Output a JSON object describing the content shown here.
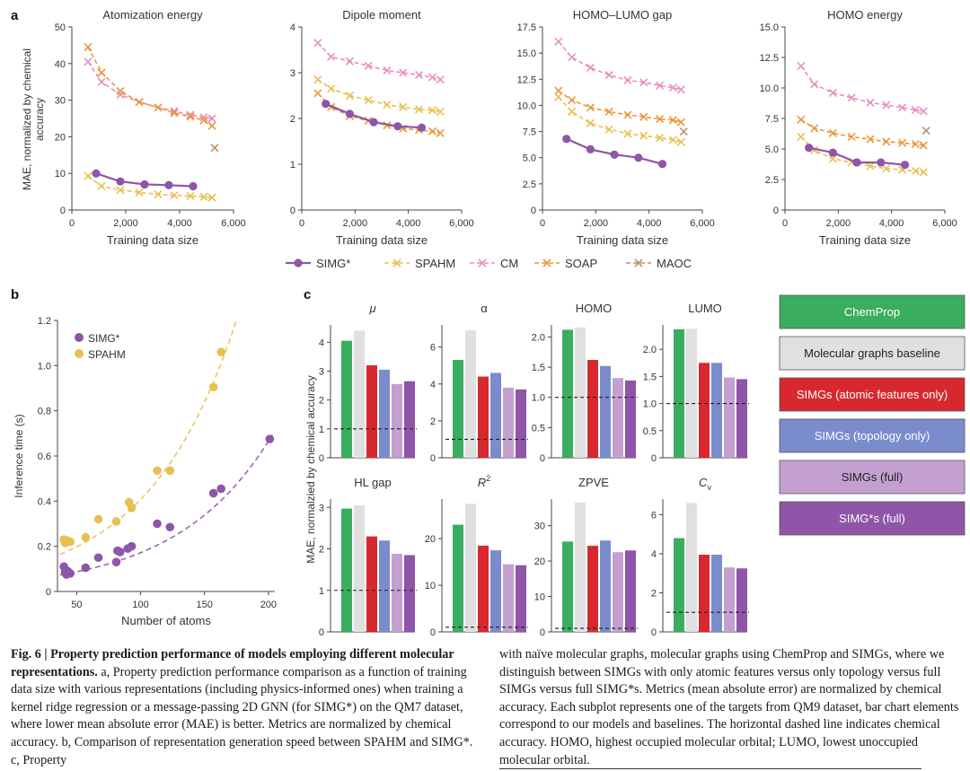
{
  "figure": {
    "panel_labels": {
      "a": "a",
      "b": "b",
      "c": "c"
    },
    "legend_a": [
      {
        "name": "SIMG*",
        "color": "#8e55a8",
        "marker": "circle"
      },
      {
        "name": "SPAHM",
        "color": "#e8c052",
        "marker": "x"
      },
      {
        "name": "CM",
        "color": "#e88fbf",
        "marker": "x"
      },
      {
        "name": "SOAP",
        "color": "#e9963f",
        "marker": "x"
      },
      {
        "name": "MAOC",
        "color": "#b8936a",
        "marker": "x"
      }
    ],
    "legend_c": [
      {
        "name": "ChemProp",
        "color": "#3aad5f",
        "text_color": "#ffffff"
      },
      {
        "name": "Molecular graphs baseline",
        "color": "#e0e0e0",
        "text_color": "#222222"
      },
      {
        "name": "SIMGs (atomic features only)",
        "color": "#d8282f",
        "text_color": "#ffffff"
      },
      {
        "name": "SIMGs (topology only)",
        "color": "#7a8ccc",
        "text_color": "#ffffff"
      },
      {
        "name": "SIMGs (full)",
        "color": "#c3a0d0",
        "text_color": "#222222"
      },
      {
        "name": "SIMG*s (full)",
        "color": "#8e55a8",
        "text_color": "#ffffff"
      }
    ]
  },
  "chart_data": [
    {
      "panel": "a",
      "type": "line",
      "title": "Atomization energy",
      "xlabel": "Training data size",
      "ylabel": "MAE, normalized by chemical accuracy",
      "xlim": [
        0,
        6000
      ],
      "ylim": [
        0,
        50
      ],
      "xticks": [
        0,
        2000,
        4000,
        6000
      ],
      "xtick_labels": [
        "0",
        "2,000",
        "4,000",
        "6,000"
      ],
      "yticks": [
        0,
        10,
        20,
        30,
        40,
        50
      ],
      "ytick_labels": [
        "0",
        "10",
        "20",
        "30",
        "40",
        "50"
      ],
      "series": [
        {
          "name": "CM",
          "x": [
            600,
            1100,
            1800,
            2500,
            3200,
            3800,
            4400,
            4900,
            5200
          ],
          "y": [
            40.5,
            35,
            31.5,
            29.5,
            28,
            27,
            26,
            25.3,
            25
          ]
        },
        {
          "name": "SOAP",
          "x": [
            600,
            1100,
            1800,
            2500,
            3200,
            3800,
            4400,
            4900,
            5200
          ],
          "y": [
            44.5,
            37.5,
            32.5,
            29.5,
            28,
            26.5,
            25.5,
            24.5,
            23
          ]
        },
        {
          "name": "SPAHM",
          "x": [
            600,
            1100,
            1800,
            2500,
            3200,
            3800,
            4400,
            4900,
            5200
          ],
          "y": [
            9.3,
            6.5,
            5.5,
            4.8,
            4.3,
            4,
            3.8,
            3.6,
            3.4
          ]
        },
        {
          "name": "SIMG*",
          "x": [
            900,
            1800,
            2700,
            3600,
            4500
          ],
          "y": [
            10,
            7.8,
            7,
            6.8,
            6.5
          ]
        },
        {
          "name": "MAOC",
          "x": [
            5300
          ],
          "y": [
            17
          ]
        }
      ]
    },
    {
      "panel": "a",
      "type": "line",
      "title": "Dipole moment",
      "xlabel": "Training data size",
      "ylabel": "",
      "xlim": [
        0,
        6000
      ],
      "ylim": [
        0,
        4
      ],
      "xticks": [
        0,
        2000,
        4000,
        6000
      ],
      "xtick_labels": [
        "0",
        "2,000",
        "4,000",
        "6,000"
      ],
      "yticks": [
        0,
        1,
        2,
        3,
        4
      ],
      "ytick_labels": [
        "0",
        "1",
        "2",
        "3",
        "4"
      ],
      "series": [
        {
          "name": "CM",
          "x": [
            600,
            1100,
            1800,
            2500,
            3200,
            3800,
            4400,
            4900,
            5200
          ],
          "y": [
            3.65,
            3.35,
            3.25,
            3.15,
            3.05,
            3,
            2.95,
            2.9,
            2.85
          ]
        },
        {
          "name": "SPAHM",
          "x": [
            600,
            1100,
            1800,
            2500,
            3200,
            3800,
            4400,
            4900,
            5200
          ],
          "y": [
            2.85,
            2.65,
            2.5,
            2.4,
            2.3,
            2.25,
            2.2,
            2.18,
            2.15
          ]
        },
        {
          "name": "SOAP",
          "x": [
            600,
            1100,
            1800,
            2500,
            3200,
            3800,
            4400,
            4900,
            5200
          ],
          "y": [
            2.55,
            2.25,
            2.05,
            1.95,
            1.85,
            1.78,
            1.75,
            1.72,
            1.68
          ]
        },
        {
          "name": "SIMG*",
          "x": [
            900,
            1800,
            2700,
            3600,
            4500
          ],
          "y": [
            2.32,
            2.1,
            1.92,
            1.83,
            1.8
          ]
        }
      ]
    },
    {
      "panel": "a",
      "type": "line",
      "title": "HOMO–LUMO gap",
      "xlabel": "Training data size",
      "ylabel": "",
      "xlim": [
        0,
        6000
      ],
      "ylim": [
        0,
        17.5
      ],
      "xticks": [
        0,
        2000,
        4000,
        6000
      ],
      "xtick_labels": [
        "0",
        "2,000",
        "4,000",
        "6,000"
      ],
      "yticks": [
        0,
        2.5,
        5,
        7.5,
        10,
        12.5,
        15,
        17.5
      ],
      "ytick_labels": [
        "0",
        "2.5",
        "5.0",
        "7.5",
        "10.0",
        "12.5",
        "15.0",
        "17.5"
      ],
      "series": [
        {
          "name": "CM",
          "x": [
            600,
            1100,
            1800,
            2500,
            3200,
            3800,
            4400,
            4900,
            5200
          ],
          "y": [
            16.1,
            14.6,
            13.6,
            12.9,
            12.4,
            12.2,
            11.9,
            11.7,
            11.5
          ]
        },
        {
          "name": "SOAP",
          "x": [
            600,
            1100,
            1800,
            2500,
            3200,
            3800,
            4400,
            4900,
            5200
          ],
          "y": [
            11.4,
            10.5,
            9.8,
            9.4,
            9.1,
            8.9,
            8.7,
            8.6,
            8.4
          ]
        },
        {
          "name": "SPAHM",
          "x": [
            600,
            1100,
            1800,
            2500,
            3200,
            3800,
            4400,
            4900,
            5200
          ],
          "y": [
            10.8,
            9.4,
            8.3,
            7.7,
            7.3,
            7.1,
            6.9,
            6.7,
            6.5
          ]
        },
        {
          "name": "SIMG*",
          "x": [
            900,
            1800,
            2700,
            3600,
            4500
          ],
          "y": [
            6.8,
            5.8,
            5.3,
            5,
            4.4
          ]
        },
        {
          "name": "MAOC",
          "x": [
            5300
          ],
          "y": [
            7.5
          ]
        }
      ]
    },
    {
      "panel": "a",
      "type": "line",
      "title": "HOMO energy",
      "xlabel": "Training data size",
      "ylabel": "",
      "xlim": [
        0,
        6000
      ],
      "ylim": [
        0,
        15
      ],
      "xticks": [
        0,
        2000,
        4000,
        6000
      ],
      "xtick_labels": [
        "0",
        "2,000",
        "4,000",
        "6,000"
      ],
      "yticks": [
        0,
        2.5,
        5,
        7.5,
        10,
        12.5,
        15
      ],
      "ytick_labels": [
        "0",
        "2.5",
        "5.0",
        "7.5",
        "10.0",
        "12.5",
        "15.0"
      ],
      "series": [
        {
          "name": "CM",
          "x": [
            600,
            1100,
            1800,
            2500,
            3200,
            3800,
            4400,
            4900,
            5200
          ],
          "y": [
            11.8,
            10.3,
            9.6,
            9.2,
            8.8,
            8.6,
            8.4,
            8.2,
            8.1
          ]
        },
        {
          "name": "SOAP",
          "x": [
            600,
            1100,
            1800,
            2500,
            3200,
            3800,
            4400,
            4900,
            5200
          ],
          "y": [
            7.4,
            6.7,
            6.3,
            6,
            5.8,
            5.6,
            5.5,
            5.4,
            5.3
          ]
        },
        {
          "name": "SPAHM",
          "x": [
            600,
            1100,
            1800,
            2500,
            3200,
            3800,
            4400,
            4900,
            5200
          ],
          "y": [
            6,
            4.9,
            4.2,
            3.9,
            3.6,
            3.4,
            3.3,
            3.2,
            3.1
          ]
        },
        {
          "name": "SIMG*",
          "x": [
            900,
            1800,
            2700,
            3600,
            4500
          ],
          "y": [
            5.1,
            4.7,
            3.9,
            3.9,
            3.7
          ]
        },
        {
          "name": "MAOC",
          "x": [
            5300
          ],
          "y": [
            6.5
          ]
        }
      ]
    },
    {
      "panel": "b",
      "type": "scatter",
      "title": "",
      "xlabel": "Number of atoms",
      "ylabel": "Inference time (s)",
      "xlim": [
        35,
        205
      ],
      "ylim": [
        0,
        1.2
      ],
      "xticks": [
        50,
        100,
        150,
        200
      ],
      "xtick_labels": [
        "50",
        "100",
        "150",
        "200"
      ],
      "yticks": [
        0,
        0.2,
        0.4,
        0.6,
        0.8,
        1.0,
        1.2
      ],
      "ytick_labels": [
        "0",
        "0.2",
        "0.4",
        "0.6",
        "0.8",
        "1.0",
        "1.2"
      ],
      "legend": [
        "SIMG*",
        "SPAHM"
      ],
      "series": [
        {
          "name": "SIMG*",
          "color": "#8e55a8",
          "x": [
            40,
            41,
            42,
            43,
            45,
            57,
            67,
            81,
            82,
            84,
            90,
            93,
            113,
            123,
            157,
            163,
            201
          ],
          "y": [
            0.11,
            0.085,
            0.075,
            0.09,
            0.08,
            0.105,
            0.15,
            0.13,
            0.18,
            0.175,
            0.19,
            0.2,
            0.3,
            0.285,
            0.435,
            0.455,
            0.675
          ],
          "fit": {
            "a": 0.0443,
            "b": 0.01355
          }
        },
        {
          "name": "SPAHM",
          "color": "#e8c052",
          "x": [
            40,
            41,
            43,
            45,
            57,
            67,
            81,
            91,
            93,
            113,
            123,
            157,
            163
          ],
          "y": [
            0.23,
            0.215,
            0.225,
            0.22,
            0.24,
            0.32,
            0.31,
            0.395,
            0.37,
            0.535,
            0.535,
            0.905,
            1.06
          ],
          "fit": {
            "a": 0.0962,
            "b": 0.01443
          }
        }
      ]
    },
    {
      "panel": "c",
      "type": "bar",
      "title": "μ",
      "italic": true,
      "categories": [
        "ChemProp",
        "Molecular graphs baseline",
        "SIMGs (atomic features only)",
        "SIMGs (topology only)",
        "SIMGs (full)",
        "SIMG*s (full)"
      ],
      "values": [
        4.05,
        4.4,
        3.2,
        3.05,
        2.55,
        2.65
      ],
      "ylim": [
        0,
        4.6
      ],
      "yticks": [
        0,
        1,
        2,
        3,
        4
      ],
      "ytick_labels": [
        "0",
        "1",
        "2",
        "3",
        "4"
      ],
      "reference": 1
    },
    {
      "panel": "c",
      "type": "bar",
      "title": "α",
      "italic": false,
      "categories": [
        "ChemProp",
        "Molecular graphs baseline",
        "SIMGs (atomic features only)",
        "SIMGs (topology only)",
        "SIMGs (full)",
        "SIMG*s (full)"
      ],
      "values": [
        5.3,
        6.9,
        4.4,
        4.6,
        3.8,
        3.7
      ],
      "ylim": [
        0,
        7.2
      ],
      "yticks": [
        0,
        2,
        4,
        6
      ],
      "ytick_labels": [
        "0",
        "2",
        "4",
        "6"
      ],
      "reference": 1
    },
    {
      "panel": "c",
      "type": "bar",
      "title": "HOMO",
      "italic": false,
      "categories": [
        "ChemProp",
        "Molecular graphs baseline",
        "SIMGs (atomic features only)",
        "SIMGs (topology only)",
        "SIMGs (full)",
        "SIMG*s (full)"
      ],
      "values": [
        2.12,
        2.16,
        1.62,
        1.52,
        1.32,
        1.28
      ],
      "ylim": [
        0,
        2.2
      ],
      "yticks": [
        0,
        0.5,
        1.0,
        1.5,
        2.0
      ],
      "ytick_labels": [
        "0",
        "0.5",
        "1.0",
        "1.5",
        "2.0"
      ],
      "reference": 1
    },
    {
      "panel": "c",
      "type": "bar",
      "title": "LUMO",
      "italic": false,
      "categories": [
        "ChemProp",
        "Molecular graphs baseline",
        "SIMGs (atomic features only)",
        "SIMGs (topology only)",
        "SIMGs (full)",
        "SIMG*s (full)"
      ],
      "values": [
        2.37,
        2.38,
        1.75,
        1.75,
        1.48,
        1.45
      ],
      "ylim": [
        0,
        2.45
      ],
      "yticks": [
        0,
        0.5,
        1.0,
        1.5,
        2.0
      ],
      "ytick_labels": [
        "0",
        "0.5",
        "1.0",
        "1.5",
        "2.0"
      ],
      "reference": 1
    },
    {
      "panel": "c",
      "type": "bar",
      "title": "HL gap",
      "italic": false,
      "categories": [
        "ChemProp",
        "Molecular graphs baseline",
        "SIMGs (atomic features only)",
        "SIMGs (topology only)",
        "SIMGs (full)",
        "SIMG*s (full)"
      ],
      "values": [
        2.97,
        3.05,
        2.3,
        2.2,
        1.88,
        1.85
      ],
      "ylim": [
        0,
        3.2
      ],
      "yticks": [
        0,
        1,
        2,
        3
      ],
      "ytick_labels": [
        "0",
        "1",
        "2",
        "3"
      ],
      "reference": 1
    },
    {
      "panel": "c",
      "type": "bar",
      "title": "R",
      "superscript": "2",
      "italic": true,
      "categories": [
        "ChemProp",
        "Molecular graphs baseline",
        "SIMGs (atomic features only)",
        "SIMGs (topology only)",
        "SIMGs (full)",
        "SIMG*s (full)"
      ],
      "values": [
        23,
        27.5,
        18.5,
        17.5,
        14.5,
        14.3
      ],
      "ylim": [
        0,
        28.5
      ],
      "yticks": [
        0,
        10,
        20
      ],
      "ytick_labels": [
        "0",
        "10",
        "20"
      ],
      "reference": 1
    },
    {
      "panel": "c",
      "type": "bar",
      "title": "ZPVE",
      "italic": false,
      "categories": [
        "ChemProp",
        "Molecular graphs baseline",
        "SIMGs (atomic features only)",
        "SIMGs (topology only)",
        "SIMGs (full)",
        "SIMG*s (full)"
      ],
      "values": [
        25.5,
        36.5,
        24.3,
        25.8,
        22.5,
        23
      ],
      "ylim": [
        0,
        37.5
      ],
      "yticks": [
        0,
        10,
        20,
        30
      ],
      "ytick_labels": [
        "0",
        "10",
        "20",
        "30"
      ],
      "reference": 1
    },
    {
      "panel": "c",
      "type": "bar",
      "title": "C",
      "subscript": "v",
      "italic": true,
      "categories": [
        "ChemProp",
        "Molecular graphs baseline",
        "SIMGs (atomic features only)",
        "SIMGs (topology only)",
        "SIMGs (full)",
        "SIMG*s (full)"
      ],
      "values": [
        4.8,
        6.6,
        3.95,
        3.95,
        3.3,
        3.25
      ],
      "ylim": [
        0,
        6.8
      ],
      "yticks": [
        0,
        2,
        4,
        6
      ],
      "ytick_labels": [
        "0",
        "2",
        "4",
        "6"
      ],
      "reference": 1
    },
    {
      "panel": "c",
      "type": "bar_axis_label",
      "ylabel": "MAE, normalzied by chemical accuracy"
    }
  ],
  "caption": {
    "fig_label": "Fig. 6 | Property prediction performance of models employing different molecular representations.",
    "left_text": " a, Property prediction performance comparison as a function of training data size with various representations (including physics-informed ones) when training a kernel ridge regression or a message-passing 2D GNN (for SIMG*) on the QM7 dataset, where lower mean absolute error (MAE) is better. Metrics are normalized by chemical accuracy. b, Comparison of representation generation speed between SPAHM and SIMG*. c, Property",
    "right_text": "with naïve molecular graphs, molecular graphs using ChemProp and SIMGs, where we distinguish between SIMGs with only atomic features versus only topology versus full SIMGs versus full SIMG*s. Metrics (mean absolute error) are normalized by chemical accuracy. Each subplot represents one of the targets from QM9 dataset, bar chart elements correspond to our models and baselines. The horizontal dashed line indicates chemical accuracy. HOMO, highest occupied molecular orbital; LUMO, lowest unoccupied molecular orbital."
  }
}
